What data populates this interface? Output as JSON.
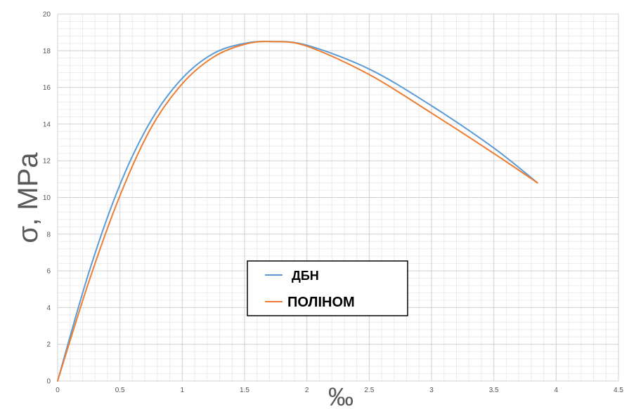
{
  "chart_data": {
    "type": "line",
    "title": "",
    "xlabel": "‰",
    "ylabel": "σ, MPa",
    "xlim": [
      0,
      4.5
    ],
    "ylim": [
      0,
      20
    ],
    "x_ticks": [
      "0",
      "0.5",
      "1",
      "1.5",
      "2",
      "2.5",
      "3",
      "3.5",
      "4",
      "4.5"
    ],
    "y_ticks": [
      "0",
      "2",
      "4",
      "6",
      "8",
      "10",
      "12",
      "14",
      "16",
      "18",
      "20"
    ],
    "grid": "major and minor",
    "legend_position": "center",
    "series": [
      {
        "name": "ДБН",
        "color": "#5b9bd5",
        "x": [
          0,
          0.25,
          0.5,
          0.75,
          1.0,
          1.25,
          1.5,
          1.72,
          2.0,
          2.5,
          3.0,
          3.5,
          3.85
        ],
        "y": [
          0,
          5.9,
          10.7,
          14.2,
          16.5,
          17.85,
          18.4,
          18.5,
          18.3,
          17.0,
          15.0,
          12.7,
          10.8
        ]
      },
      {
        "name": "ПОЛІНОМ",
        "color": "#ed7d31",
        "x": [
          0,
          0.25,
          0.5,
          0.75,
          1.0,
          1.25,
          1.5,
          1.72,
          2.0,
          2.5,
          3.0,
          3.5,
          3.85
        ],
        "y": [
          0,
          5.4,
          10.1,
          13.8,
          16.2,
          17.65,
          18.35,
          18.5,
          18.25,
          16.7,
          14.6,
          12.4,
          10.8
        ]
      }
    ]
  }
}
